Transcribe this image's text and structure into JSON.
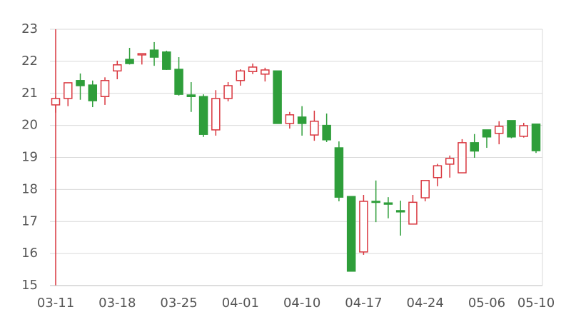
{
  "chart_data": {
    "type": "candlestick",
    "categories": [
      "03-11",
      null,
      null,
      null,
      null,
      "03-18",
      null,
      null,
      null,
      null,
      "03-25",
      null,
      null,
      null,
      null,
      "04-01",
      null,
      null,
      null,
      null,
      "04-10",
      null,
      null,
      null,
      null,
      "04-17",
      null,
      null,
      null,
      null,
      "04-24",
      null,
      null,
      null,
      null,
      "05-06",
      null,
      null,
      null,
      "05-10"
    ],
    "open": [
      20.64,
      20.84,
      21.4,
      21.26,
      20.9,
      21.7,
      22.06,
      22.2,
      22.35,
      22.29,
      21.75,
      20.95,
      20.9,
      19.86,
      20.84,
      21.4,
      21.68,
      21.6,
      21.7,
      20.06,
      20.26,
      19.7,
      20.0,
      19.3,
      17.78,
      16.05,
      17.63,
      17.58,
      17.34,
      16.92,
      17.74,
      18.37,
      18.79,
      18.52,
      19.46,
      19.86,
      19.75,
      20.15,
      19.66,
      20.04
    ],
    "high": [
      20.9,
      21.33,
      21.62,
      21.4,
      21.5,
      22.02,
      22.42,
      22.25,
      22.6,
      22.33,
      22.13,
      21.35,
      20.97,
      21.1,
      21.35,
      21.75,
      21.93,
      21.8,
      21.7,
      20.42,
      20.6,
      20.46,
      20.37,
      19.5,
      17.78,
      17.83,
      18.28,
      17.76,
      17.65,
      17.83,
      18.28,
      18.8,
      19.06,
      19.57,
      19.73,
      19.86,
      20.13,
      20.15,
      20.08,
      20.04
    ],
    "low": [
      20.4,
      20.6,
      20.8,
      20.57,
      20.64,
      21.44,
      21.9,
      21.9,
      21.86,
      21.73,
      20.93,
      20.42,
      19.64,
      19.68,
      20.75,
      21.24,
      21.6,
      21.37,
      20.06,
      19.9,
      19.68,
      19.52,
      19.48,
      17.63,
      15.45,
      15.96,
      16.98,
      17.1,
      16.56,
      16.92,
      17.63,
      18.1,
      18.37,
      18.52,
      18.99,
      19.3,
      19.41,
      19.6,
      19.62,
      19.14
    ],
    "close": [
      20.84,
      21.33,
      21.24,
      20.77,
      21.4,
      21.89,
      21.93,
      22.24,
      22.13,
      21.75,
      20.97,
      20.9,
      19.72,
      20.84,
      21.24,
      21.7,
      21.82,
      21.73,
      20.06,
      20.33,
      20.06,
      20.13,
      19.55,
      17.76,
      15.45,
      17.63,
      17.6,
      17.54,
      17.3,
      17.6,
      18.28,
      18.74,
      18.97,
      19.46,
      19.2,
      19.64,
      19.97,
      19.64,
      19.99,
      19.21
    ],
    "up_color": "#d9363e",
    "down_color": "#2e9e3a",
    "ylim": [
      15,
      23
    ],
    "yticks": [
      15,
      16,
      17,
      18,
      19,
      20,
      21,
      22,
      23
    ],
    "grid": true
  }
}
